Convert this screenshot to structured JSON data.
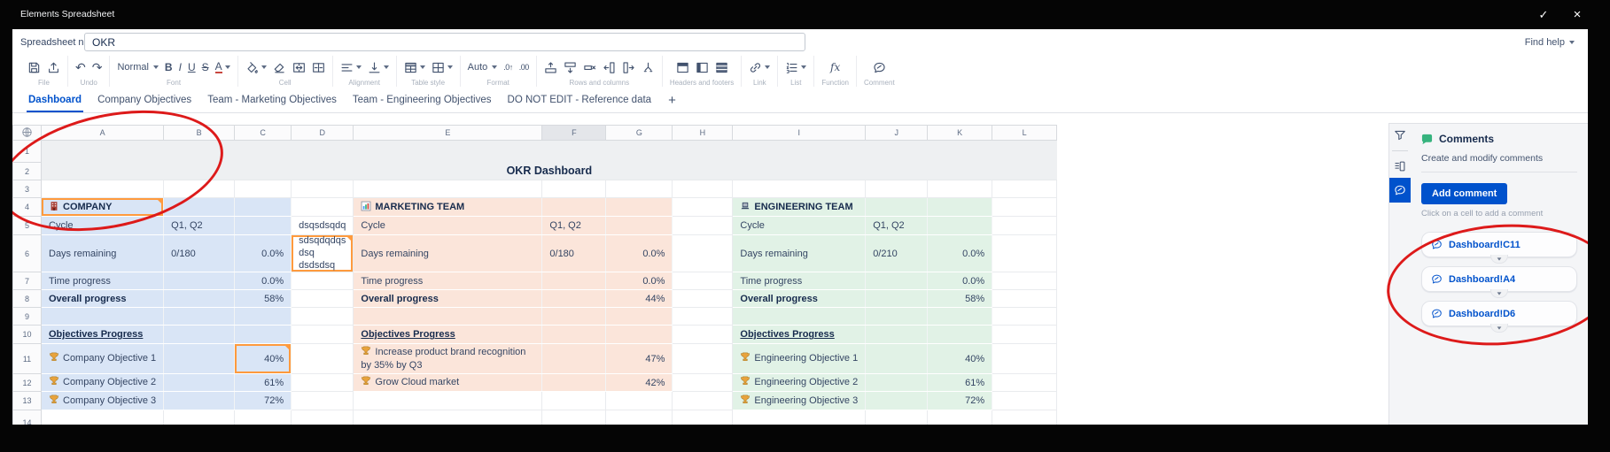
{
  "chrome": {
    "app_title": "Elements Spreadsheet",
    "confirm_icon": "check-icon",
    "close_icon": "close-icon"
  },
  "header": {
    "name_label": "Spreadsheet name",
    "name_value": "OKR",
    "find_help_label": "Find help"
  },
  "toolbar": {
    "groups": [
      {
        "label": "File",
        "items": [
          {
            "icon": "save-icon"
          },
          {
            "icon": "export-icon"
          }
        ]
      },
      {
        "label": "Undo",
        "items": [
          {
            "icon": "undo-icon"
          },
          {
            "icon": "redo-icon"
          }
        ]
      },
      {
        "label": "Font",
        "items": [
          {
            "select": "Normal",
            "name": "font-style-select"
          },
          {
            "icon": "bold-icon"
          },
          {
            "icon": "italic-icon"
          },
          {
            "icon": "underline-icon"
          },
          {
            "icon": "strikethrough-icon"
          },
          {
            "icon": "text-color-icon",
            "chevron": true
          }
        ]
      },
      {
        "label": "Cell",
        "items": [
          {
            "icon": "fill-color-icon",
            "chevron": true
          },
          {
            "icon": "clear-formatting-icon"
          },
          {
            "icon": "merge-cells-icon"
          },
          {
            "icon": "unmerge-cells-icon"
          }
        ]
      },
      {
        "label": "Alignment",
        "items": [
          {
            "icon": "horizontal-align-icon",
            "chevron": true
          },
          {
            "icon": "vertical-align-icon",
            "chevron": true
          }
        ]
      },
      {
        "label": "Table style",
        "items": [
          {
            "icon": "table-header-style-icon",
            "chevron": true
          },
          {
            "icon": "table-borders-icon",
            "chevron": true
          }
        ]
      },
      {
        "label": "Format",
        "items": [
          {
            "select": "Auto",
            "name": "number-format-select"
          },
          {
            "icon": "increase-decimal-icon"
          },
          {
            "icon": "decrease-decimal-icon"
          }
        ]
      },
      {
        "label": "Rows and columns",
        "items": [
          {
            "icon": "insert-row-above-icon"
          },
          {
            "icon": "insert-row-below-icon"
          },
          {
            "icon": "delete-row-icon"
          },
          {
            "icon": "insert-column-left-icon"
          },
          {
            "icon": "insert-column-right-icon"
          },
          {
            "icon": "split-cells-icon"
          }
        ]
      },
      {
        "label": "Headers and footers",
        "items": [
          {
            "icon": "header-row-icon"
          },
          {
            "icon": "first-column-icon"
          },
          {
            "icon": "header-footer-icon"
          }
        ]
      },
      {
        "label": "Link",
        "items": [
          {
            "icon": "link-icon",
            "chevron": true
          }
        ]
      },
      {
        "label": "List",
        "items": [
          {
            "icon": "numbered-list-icon",
            "chevron": true
          }
        ]
      },
      {
        "label": "Function",
        "items": [
          {
            "icon": "function-icon"
          }
        ]
      },
      {
        "label": "Comment",
        "items": [
          {
            "icon": "comment-icon"
          }
        ]
      }
    ]
  },
  "tabs": {
    "items": [
      "Dashboard",
      "Company Objectives",
      "Team - Marketing Objectives",
      "Team - Engineering Objectives",
      "DO NOT EDIT - Reference data"
    ],
    "active": "Dashboard",
    "add_label": "+"
  },
  "grid": {
    "column_headers": [
      "A",
      "B",
      "C",
      "D",
      "E",
      "F",
      "G",
      "H",
      "I",
      "J",
      "K",
      "L"
    ],
    "highlighted_column": "F",
    "row_count": 14,
    "title": "OKR Dashboard",
    "select_all_icon": "globe-icon",
    "sections": [
      {
        "name": "company",
        "cols": [
          "A",
          "B",
          "C"
        ],
        "row_start": 4,
        "row_end": 13,
        "color": "#d9e5f6"
      },
      {
        "name": "marketing",
        "cols": [
          "E",
          "F",
          "G"
        ],
        "row_start": 4,
        "row_end": 12,
        "color": "#fbe5da"
      },
      {
        "name": "engineering",
        "cols": [
          "I",
          "J",
          "K"
        ],
        "row_start": 4,
        "row_end": 13,
        "color": "#e1f2e6"
      }
    ],
    "cells": [
      {
        "r": 4,
        "c": "A",
        "text": "COMPANY",
        "icon": "building-icon",
        "bold": true,
        "comment": true
      },
      {
        "r": 4,
        "c": "E",
        "text": "MARKETING TEAM",
        "icon": "bar-chart-icon",
        "bold": true
      },
      {
        "r": 4,
        "c": "I",
        "text": "ENGINEERING TEAM",
        "icon": "laptop-icon",
        "bold": true
      },
      {
        "r": 5,
        "c": "A",
        "text": "Cycle"
      },
      {
        "r": 5,
        "c": "B",
        "text": "Q1, Q2"
      },
      {
        "r": 5,
        "c": "D",
        "text": "dsqsdsqdq",
        "align": "center"
      },
      {
        "r": 5,
        "c": "E",
        "text": "Cycle"
      },
      {
        "r": 5,
        "c": "F",
        "text": "Q1, Q2"
      },
      {
        "r": 5,
        "c": "I",
        "text": "Cycle"
      },
      {
        "r": 5,
        "c": "J",
        "text": "Q1, Q2"
      },
      {
        "r": 6,
        "c": "A",
        "text": "Days remaining"
      },
      {
        "r": 6,
        "c": "B",
        "text": "0/180"
      },
      {
        "r": 6,
        "c": "C",
        "text": "0.0%",
        "align": "right"
      },
      {
        "r": 6,
        "c": "D",
        "text": "sdsqdqdqsdsq dsdsdsq",
        "comment": true,
        "wrap": true
      },
      {
        "r": 6,
        "c": "E",
        "text": "Days remaining"
      },
      {
        "r": 6,
        "c": "F",
        "text": "0/180"
      },
      {
        "r": 6,
        "c": "G",
        "text": "0.0%",
        "align": "right"
      },
      {
        "r": 6,
        "c": "I",
        "text": "Days remaining"
      },
      {
        "r": 6,
        "c": "J",
        "text": "0/210"
      },
      {
        "r": 6,
        "c": "K",
        "text": "0.0%",
        "align": "right"
      },
      {
        "r": 7,
        "c": "A",
        "text": "Time progress"
      },
      {
        "r": 7,
        "c": "C",
        "text": "0.0%",
        "align": "right"
      },
      {
        "r": 7,
        "c": "E",
        "text": "Time progress"
      },
      {
        "r": 7,
        "c": "G",
        "text": "0.0%",
        "align": "right"
      },
      {
        "r": 7,
        "c": "I",
        "text": "Time progress"
      },
      {
        "r": 7,
        "c": "K",
        "text": "0.0%",
        "align": "right"
      },
      {
        "r": 8,
        "c": "A",
        "text": "Overall progress",
        "bold": true
      },
      {
        "r": 8,
        "c": "C",
        "text": "58%",
        "align": "right"
      },
      {
        "r": 8,
        "c": "E",
        "text": "Overall progress",
        "bold": true
      },
      {
        "r": 8,
        "c": "G",
        "text": "44%",
        "align": "right"
      },
      {
        "r": 8,
        "c": "I",
        "text": "Overall progress",
        "bold": true
      },
      {
        "r": 8,
        "c": "K",
        "text": "58%",
        "align": "right"
      },
      {
        "r": 10,
        "c": "A",
        "text": "Objectives Progress",
        "bold": true,
        "underline": true
      },
      {
        "r": 10,
        "c": "E",
        "text": "Objectives Progress",
        "bold": true,
        "underline": true
      },
      {
        "r": 10,
        "c": "I",
        "text": "Objectives Progress",
        "bold": true,
        "underline": true
      },
      {
        "r": 11,
        "c": "A",
        "text": "Company Objective 1",
        "icon": "trophy-icon"
      },
      {
        "r": 11,
        "c": "C",
        "text": "40%",
        "align": "right",
        "comment": true
      },
      {
        "r": 11,
        "c": "E",
        "text": "Increase product brand recognition by 35% by Q3",
        "icon": "trophy-icon",
        "wrap": true
      },
      {
        "r": 11,
        "c": "G",
        "text": "47%",
        "align": "right"
      },
      {
        "r": 11,
        "c": "I",
        "text": "Engineering Objective 1",
        "icon": "trophy-icon"
      },
      {
        "r": 11,
        "c": "K",
        "text": "40%",
        "align": "right"
      },
      {
        "r": 12,
        "c": "A",
        "text": "Company Objective 2",
        "icon": "trophy-icon"
      },
      {
        "r": 12,
        "c": "C",
        "text": "61%",
        "align": "right"
      },
      {
        "r": 12,
        "c": "E",
        "text": "Grow Cloud market",
        "icon": "trophy-icon"
      },
      {
        "r": 12,
        "c": "G",
        "text": "42%",
        "align": "right"
      },
      {
        "r": 12,
        "c": "I",
        "text": "Engineering Objective 2",
        "icon": "trophy-icon"
      },
      {
        "r": 12,
        "c": "K",
        "text": "61%",
        "align": "right"
      },
      {
        "r": 13,
        "c": "A",
        "text": "Company Objective 3",
        "icon": "trophy-icon"
      },
      {
        "r": 13,
        "c": "C",
        "text": "72%",
        "align": "right"
      },
      {
        "r": 13,
        "c": "I",
        "text": "Engineering Objective 3",
        "icon": "trophy-icon"
      },
      {
        "r": 13,
        "c": "K",
        "text": "72%",
        "align": "right"
      }
    ]
  },
  "rail": {
    "icons": [
      "filter-icon",
      "template-icon",
      "comment-icon"
    ],
    "active_icon": "comment-icon"
  },
  "comments_panel": {
    "icon": "comments-green-icon",
    "title": "Comments",
    "subtitle": "Create and modify comments",
    "add_button_label": "Add comment",
    "hint": "Click on a cell to add a comment",
    "comments": [
      "Dashboard!C11",
      "Dashboard!A4",
      "Dashboard!D6"
    ]
  },
  "annotations": {
    "circled_tab": "Dashboard",
    "circled_comments": [
      "Dashboard!C11",
      "Dashboard!A4",
      "Dashboard!D6"
    ],
    "color": "#dd1a1a"
  },
  "colors": {
    "accent_blue": "#0052cc",
    "comment_orange": "#ff9a3d",
    "company_section": "#d9e5f6",
    "marketing_section": "#fbe5da",
    "engineering_section": "#e1f2e6",
    "title_band": "#eef0f2"
  }
}
